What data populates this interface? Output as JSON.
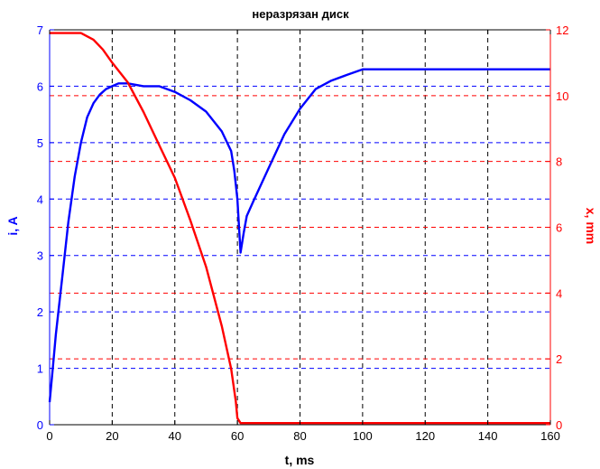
{
  "chart_data": {
    "type": "line",
    "title": "неразрязан диск",
    "xlabel": "t, ms",
    "ylabel_left": "i, A",
    "ylabel_right": "x, mm",
    "xlim": [
      0,
      160
    ],
    "ylim_left": [
      0,
      7
    ],
    "ylim_right": [
      0,
      12
    ],
    "xticks": [
      "0",
      "20",
      "40",
      "60",
      "80",
      "100",
      "120",
      "140",
      "160"
    ],
    "yticks_left": [
      "0",
      "1",
      "2",
      "3",
      "4",
      "5",
      "6",
      "7"
    ],
    "yticks_right": [
      "0",
      "2",
      "4",
      "6",
      "8",
      "10",
      "12"
    ],
    "grid": true,
    "colors": {
      "current": "#0000ff",
      "position": "#ff0000",
      "axes": "#000000"
    },
    "series": [
      {
        "axis": "left",
        "x": [
          0,
          1,
          2,
          4,
          6,
          8,
          10,
          12,
          14,
          16,
          18,
          20,
          22,
          25,
          30,
          35,
          40,
          45,
          50,
          55,
          58,
          59,
          60,
          61,
          62,
          63,
          65,
          70,
          75,
          80,
          85,
          90,
          95,
          100,
          110,
          120,
          130,
          140,
          150,
          160
        ],
        "values": [
          0.4,
          1.0,
          1.6,
          2.6,
          3.6,
          4.4,
          5.0,
          5.45,
          5.7,
          5.85,
          5.95,
          6.0,
          6.05,
          6.05,
          6.0,
          6.0,
          5.9,
          5.75,
          5.55,
          5.2,
          4.85,
          4.5,
          4.0,
          3.05,
          3.4,
          3.7,
          3.95,
          4.55,
          5.15,
          5.6,
          5.95,
          6.1,
          6.2,
          6.3,
          6.3,
          6.3,
          6.3,
          6.3,
          6.3,
          6.3
        ]
      },
      {
        "axis": "right",
        "x": [
          0,
          5,
          10,
          14,
          17,
          20,
          25,
          30,
          35,
          40,
          45,
          50,
          55,
          58,
          59.5,
          60,
          61,
          70,
          80,
          90,
          100,
          110,
          120,
          130,
          140,
          150,
          160
        ],
        "values": [
          11.9,
          11.9,
          11.9,
          11.7,
          11.4,
          11.0,
          10.4,
          9.5,
          8.5,
          7.5,
          6.2,
          4.8,
          3.0,
          1.7,
          0.7,
          0.2,
          0.05,
          0.05,
          0.05,
          0.05,
          0.05,
          0.05,
          0.05,
          0.05,
          0.05,
          0.05,
          0.05
        ]
      }
    ]
  }
}
